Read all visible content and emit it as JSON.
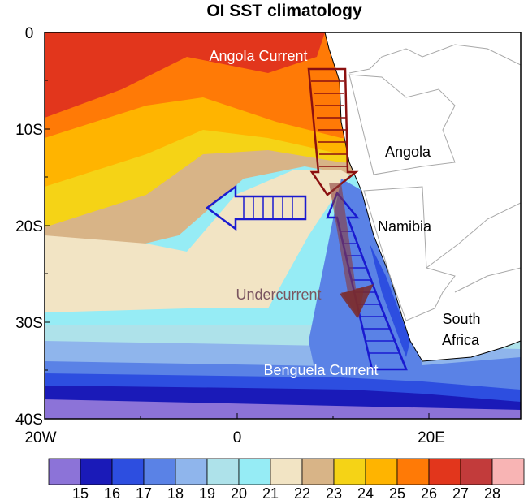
{
  "title": "OI SST climatology",
  "axes": {
    "y_ticks": [
      "0",
      "10S",
      "20S",
      "30S",
      "40S"
    ],
    "x_ticks": [
      "20W",
      "0",
      "20E"
    ]
  },
  "labels": {
    "angola_current": "Angola Current",
    "angola": "Angola",
    "namibia": "Namibia",
    "undercurrent": "Undercurrent",
    "south_africa_line1": "South",
    "south_africa_line2": "Africa",
    "benguela_current": "Benguela Current"
  },
  "colorbar": {
    "labels": [
      "15",
      "16",
      "17",
      "18",
      "19",
      "20",
      "21",
      "22",
      "23",
      "24",
      "25",
      "26",
      "27",
      "28"
    ],
    "colors": [
      "#8c73d8",
      "#1a1ab8",
      "#2d4ee0",
      "#5a82e6",
      "#8fb5ec",
      "#aee2ea",
      "#96ecf5",
      "#f2e4c4",
      "#d8b487",
      "#f5d316",
      "#ffb400",
      "#ff7a06",
      "#e2361c",
      "#c23b3b",
      "#f8b4b4"
    ]
  },
  "colors": {
    "land": "#ffffff",
    "border": "#a8a8a8",
    "angola_arrow": "#8b1010",
    "benguela_arrow": "#1a1ad0"
  }
}
